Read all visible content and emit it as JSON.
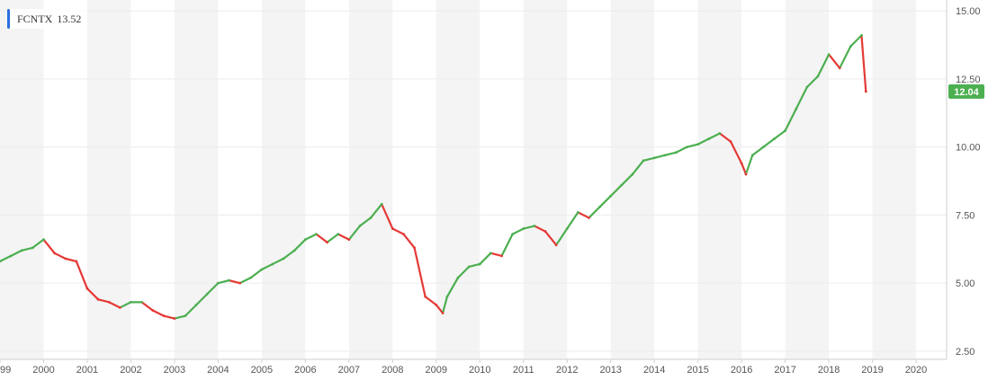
{
  "legend": {
    "symbol": "FCNTX",
    "value": "13.52",
    "color": "#2b6fe0"
  },
  "colors": {
    "up": "#4caf50",
    "down": "#e53935",
    "band": "#f4f4f4",
    "grid": "#ececec",
    "last_badge": "#4caf50"
  },
  "chart_data": {
    "type": "line",
    "title": "",
    "xlabel": "",
    "ylabel": "",
    "ylim": [
      2.2,
      15.4
    ],
    "xlim": [
      1999.0,
      2020.7
    ],
    "x_ticks": [
      "99",
      "2000",
      "2001",
      "2002",
      "2003",
      "2004",
      "2005",
      "2006",
      "2007",
      "2008",
      "2009",
      "2010",
      "2011",
      "2012",
      "2013",
      "2014",
      "2015",
      "2016",
      "2017",
      "2018",
      "2019",
      "2020"
    ],
    "y_ticks": [
      "2.50",
      "5.00",
      "7.50",
      "10.00",
      "12.50",
      "15.00"
    ],
    "last_value_label": "12.04",
    "series": [
      {
        "x": [
          1999.0,
          1999.25,
          1999.5,
          1999.75,
          2000.0,
          2000.25,
          2000.5,
          2000.75,
          2001.0,
          2001.25,
          2001.5,
          2001.75,
          2002.0,
          2002.25,
          2002.5,
          2002.75,
          2003.0,
          2003.25,
          2003.5,
          2003.75,
          2004.0,
          2004.25,
          2004.5,
          2004.75,
          2005.0,
          2005.25,
          2005.5,
          2005.75,
          2006.0,
          2006.25,
          2006.5,
          2006.75,
          2007.0,
          2007.25,
          2007.5,
          2007.75,
          2008.0,
          2008.25,
          2008.5,
          2008.75,
          2009.0,
          2009.15,
          2009.25,
          2009.5,
          2009.75,
          2010.0,
          2010.25,
          2010.5,
          2010.75,
          2011.0,
          2011.25,
          2011.5,
          2011.75,
          2012.0,
          2012.25,
          2012.5,
          2012.75,
          2013.0,
          2013.25,
          2013.5,
          2013.75,
          2014.0,
          2014.25,
          2014.5,
          2014.75,
          2015.0,
          2015.25,
          2015.5,
          2015.75,
          2016.0,
          2016.1,
          2016.25,
          2016.5,
          2016.75,
          2017.0,
          2017.25,
          2017.5,
          2017.75,
          2018.0,
          2018.25,
          2018.5,
          2018.75,
          2018.85
        ],
        "values": [
          5.8,
          6.0,
          6.2,
          6.3,
          6.6,
          6.1,
          5.9,
          5.8,
          4.8,
          4.4,
          4.3,
          4.1,
          4.3,
          4.3,
          4.0,
          3.8,
          3.7,
          3.8,
          4.2,
          4.6,
          5.0,
          5.1,
          5.0,
          5.2,
          5.5,
          5.7,
          5.9,
          6.2,
          6.6,
          6.8,
          6.5,
          6.8,
          6.6,
          7.1,
          7.4,
          7.9,
          7.0,
          6.8,
          6.3,
          4.5,
          4.2,
          3.9,
          4.5,
          5.2,
          5.6,
          5.7,
          6.1,
          6.0,
          6.8,
          7.0,
          7.1,
          6.9,
          6.4,
          7.0,
          7.6,
          7.4,
          7.8,
          8.2,
          8.6,
          9.0,
          9.5,
          9.6,
          9.7,
          9.8,
          10.0,
          10.1,
          10.3,
          10.5,
          10.2,
          9.4,
          9.0,
          9.7,
          10.0,
          10.3,
          10.6,
          11.4,
          12.2,
          12.6,
          13.4,
          12.9,
          13.7,
          14.1,
          12.04
        ]
      }
    ]
  }
}
